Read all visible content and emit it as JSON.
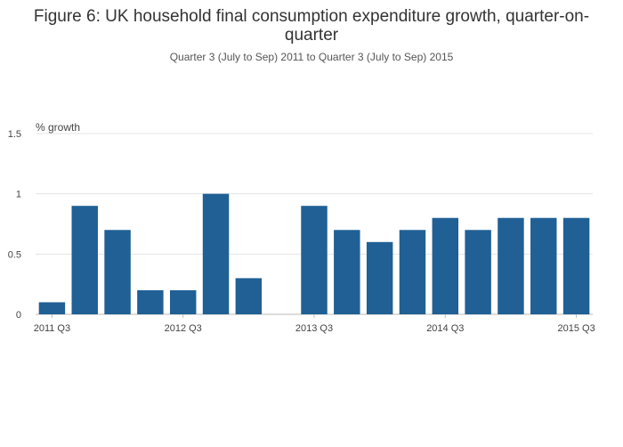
{
  "chart_data": {
    "type": "bar",
    "title": "Figure 6: UK household final consumption expenditure growth, quarter-on-quarter",
    "subtitle": "Quarter 3 (July to Sep) 2011 to Quarter 3 (July to Sep) 2015",
    "ylabel": "% growth",
    "xlabel": "",
    "ylim": [
      0,
      1.5
    ],
    "yticks": [
      0,
      0.5,
      1,
      1.5
    ],
    "ytick_labels": [
      "0",
      "0.5",
      "1",
      "1.5"
    ],
    "categories": [
      "2011 Q3",
      "2011 Q4",
      "2012 Q1",
      "2012 Q2",
      "2012 Q3",
      "2012 Q4",
      "2013 Q1",
      "2013 Q2",
      "2013 Q3",
      "2013 Q4",
      "2014 Q1",
      "2014 Q2",
      "2014 Q3",
      "2014 Q4",
      "2015 Q1",
      "2015 Q2",
      "2015 Q3"
    ],
    "xtick_labels": [
      "2011 Q3",
      "2012 Q3",
      "2013 Q3",
      "2014 Q3",
      "2015 Q3"
    ],
    "xtick_categories": [
      "2011 Q3",
      "2012 Q3",
      "2013 Q3",
      "2014 Q3",
      "2015 Q3"
    ],
    "values": [
      0.1,
      0.9,
      0.7,
      0.2,
      0.2,
      1.0,
      0.3,
      0.0,
      0.9,
      0.7,
      0.6,
      0.7,
      0.8,
      0.7,
      0.8,
      0.8,
      0.8
    ],
    "bar_color": "#206095",
    "grid": true,
    "legend": "none"
  }
}
